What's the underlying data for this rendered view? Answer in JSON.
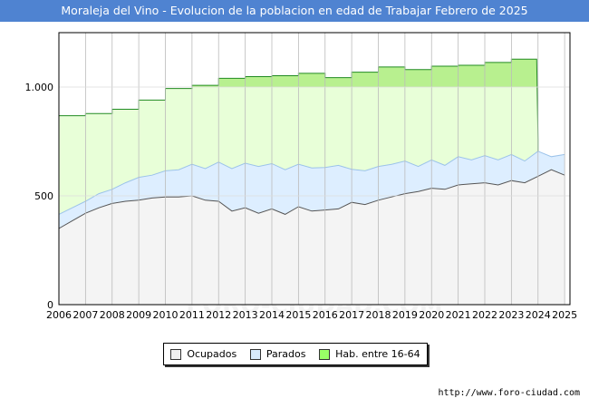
{
  "title": "Moraleja del Vino - Evolucion de la poblacion en edad de Trabajar Febrero de 2025",
  "footer": "http://www.foro-ciudad.com",
  "watermark": "FORO-CIUDAD.COM",
  "legend": [
    {
      "label": "Ocupados",
      "color": "#f0f0f0"
    },
    {
      "label": "Parados",
      "color": "#d7e9fb"
    },
    {
      "label": "Hab. entre 16-64",
      "color": "#99ff66"
    }
  ],
  "chart_data": {
    "type": "area",
    "title": "Moraleja del Vino - Evolucion de la poblacion en edad de Trabajar Febrero de 2025",
    "xlabel": "",
    "ylabel": "",
    "xlim": [
      2006,
      2025.2
    ],
    "ylim": [
      0,
      1250
    ],
    "grid": true,
    "legend_position": "bottom",
    "x_ticks": [
      "2006",
      "2007",
      "2008",
      "2009",
      "2010",
      "2011",
      "2012",
      "2013",
      "2014",
      "2015",
      "2016",
      "2017",
      "2018",
      "2019",
      "2020",
      "2021",
      "2022",
      "2023",
      "2024",
      "2025"
    ],
    "y_ticks": [
      {
        "value": 0,
        "label": "0"
      },
      {
        "value": 500,
        "label": "500"
      },
      {
        "value": 1000,
        "label": "1.000"
      }
    ],
    "series": [
      {
        "name": "Hab. entre 16-64",
        "color": "#99ff66",
        "fill": "#e8ffd8",
        "x": [
          2006,
          2007,
          2008,
          2009,
          2010,
          2011,
          2012,
          2013,
          2014,
          2015,
          2016,
          2017,
          2018,
          2019,
          2020,
          2021,
          2022,
          2023,
          2024
        ],
        "values": [
          868,
          878,
          898,
          940,
          993,
          1008,
          1040,
          1048,
          1052,
          1063,
          1043,
          1068,
          1092,
          1080,
          1096,
          1100,
          1113,
          1128,
          760
        ]
      },
      {
        "name": "Parados",
        "color": "#9cc3ea",
        "fill": "#ddeeff",
        "x": [
          2006,
          2006.5,
          2007,
          2007.5,
          2008,
          2008.5,
          2009,
          2009.5,
          2010,
          2010.5,
          2011,
          2011.5,
          2012,
          2012.5,
          2013,
          2013.5,
          2014,
          2014.5,
          2015,
          2015.5,
          2016,
          2016.5,
          2017,
          2017.5,
          2018,
          2018.5,
          2019,
          2019.5,
          2020,
          2020.5,
          2021,
          2021.5,
          2022,
          2022.5,
          2023,
          2023.5,
          2024,
          2024.5,
          2025
        ],
        "values": [
          415,
          445,
          475,
          510,
          530,
          560,
          585,
          595,
          615,
          620,
          645,
          625,
          655,
          625,
          650,
          635,
          648,
          620,
          645,
          628,
          630,
          640,
          622,
          615,
          635,
          645,
          660,
          635,
          665,
          640,
          680,
          665,
          685,
          665,
          690,
          660,
          705,
          680,
          690
        ]
      },
      {
        "name": "Ocupados",
        "color": "#555555",
        "fill": "#f4f4f4",
        "x": [
          2006,
          2006.5,
          2007,
          2007.5,
          2008,
          2008.5,
          2009,
          2009.5,
          2010,
          2010.5,
          2011,
          2011.5,
          2012,
          2012.5,
          2013,
          2013.5,
          2014,
          2014.5,
          2015,
          2015.5,
          2016,
          2016.5,
          2017,
          2017.5,
          2018,
          2018.5,
          2019,
          2019.5,
          2020,
          2020.5,
          2021,
          2021.5,
          2022,
          2022.5,
          2023,
          2023.5,
          2024,
          2024.5,
          2025
        ],
        "values": [
          350,
          385,
          420,
          445,
          465,
          475,
          480,
          490,
          495,
          495,
          500,
          480,
          475,
          430,
          445,
          420,
          440,
          415,
          450,
          430,
          435,
          440,
          470,
          460,
          480,
          495,
          510,
          520,
          535,
          530,
          550,
          555,
          560,
          550,
          570,
          560,
          590,
          620,
          595
        ]
      }
    ]
  }
}
